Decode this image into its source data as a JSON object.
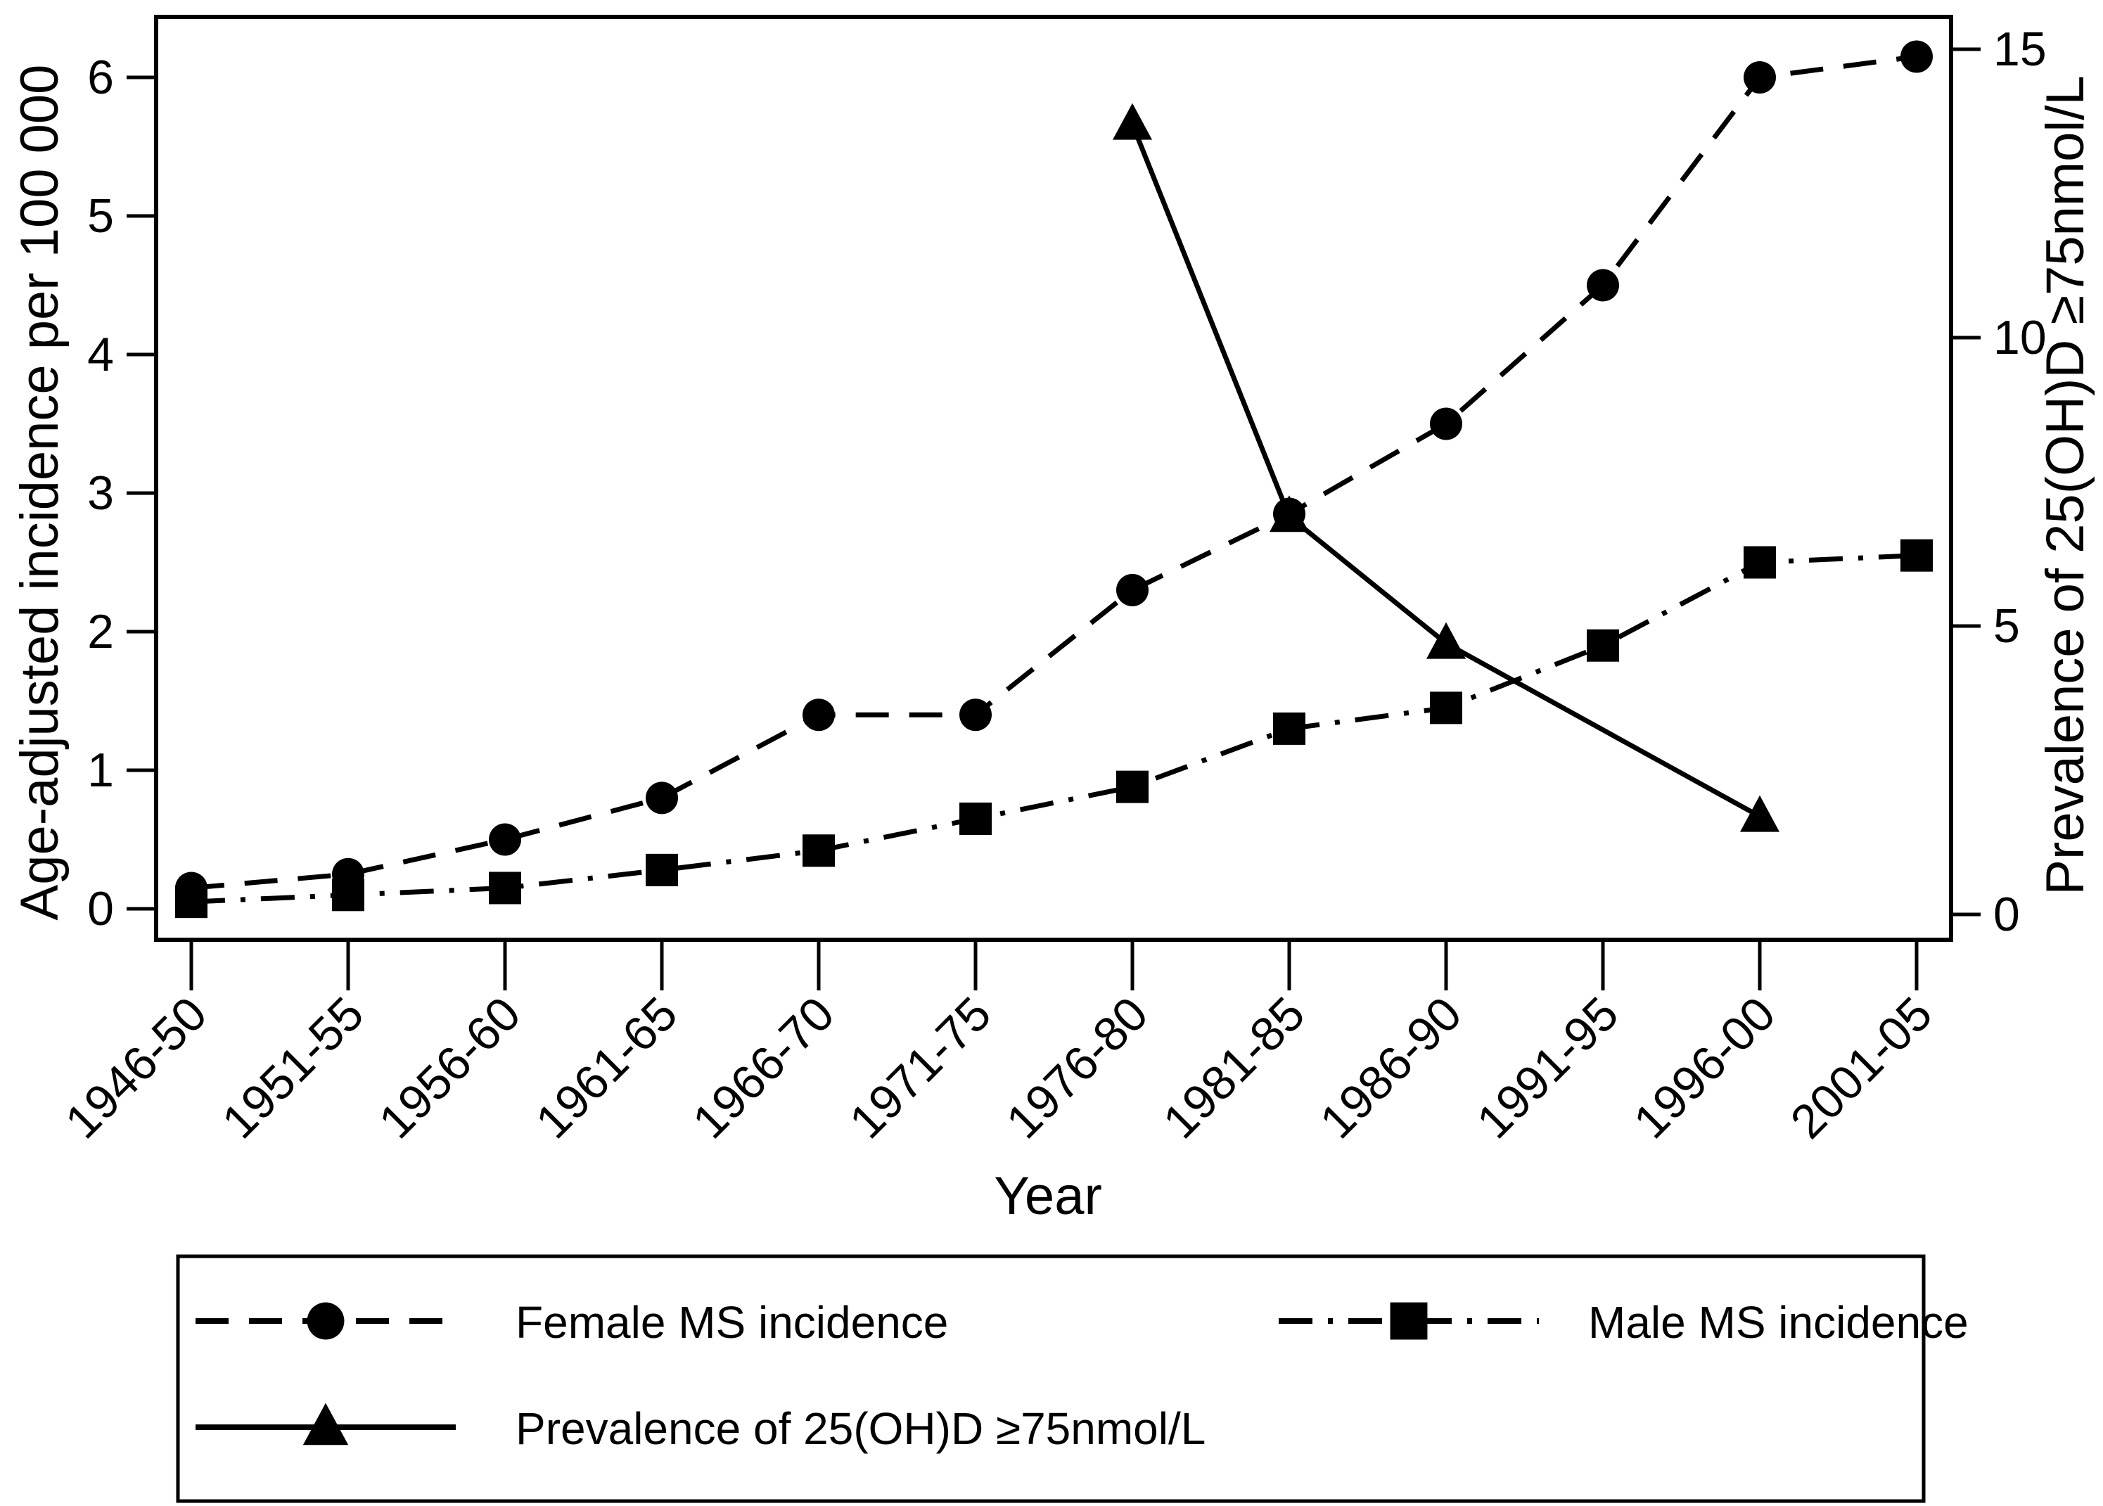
{
  "page": {
    "background": "#ffffff",
    "foreground": "#000000"
  },
  "chart_data": {
    "type": "line",
    "title": "",
    "xlabel": "Year",
    "ylabel_left": "Age-adjusted incidence per 100 000",
    "ylabel_right": "Prevalence of 25(OH)D ≥75nmol/L",
    "categories": [
      "1946-50",
      "1951-55",
      "1956-60",
      "1961-65",
      "1966-70",
      "1971-75",
      "1976-80",
      "1981-85",
      "1986-90",
      "1991-95",
      "1996-00",
      "2001-05"
    ],
    "yticks_left": [
      0,
      1,
      2,
      3,
      4,
      5,
      6
    ],
    "ylim_left": [
      0,
      6.4
    ],
    "yticks_right": [
      0,
      5,
      10,
      15
    ],
    "ylim_right": [
      0,
      15.6
    ],
    "grid": false,
    "legend_position": "bottom",
    "series": [
      {
        "name": "Female MS incidence",
        "axis": "left",
        "marker": "circle",
        "line": "dashed",
        "values": [
          0.15,
          0.25,
          0.5,
          0.8,
          1.4,
          1.4,
          2.3,
          2.85,
          3.5,
          4.5,
          6.0,
          6.15
        ]
      },
      {
        "name": "Male MS incidence",
        "axis": "left",
        "marker": "square",
        "line": "dashdot",
        "values": [
          0.05,
          0.1,
          0.15,
          0.28,
          0.42,
          0.65,
          0.88,
          1.3,
          1.45,
          1.9,
          2.5,
          2.55
        ]
      },
      {
        "name": "Prevalence of 25(OH)D ≥75nmol/L",
        "axis": "right",
        "marker": "triangle",
        "line": "solid",
        "values": [
          null,
          null,
          null,
          null,
          null,
          null,
          13.7,
          6.9,
          4.7,
          null,
          1.7,
          null
        ]
      }
    ],
    "legend": {
      "entries": [
        "Female MS incidence",
        "Male MS incidence",
        "Prevalence of 25(OH)D ≥75nmol/L"
      ]
    },
    "colors": {
      "foreground": "#000000",
      "background": "#ffffff"
    }
  }
}
